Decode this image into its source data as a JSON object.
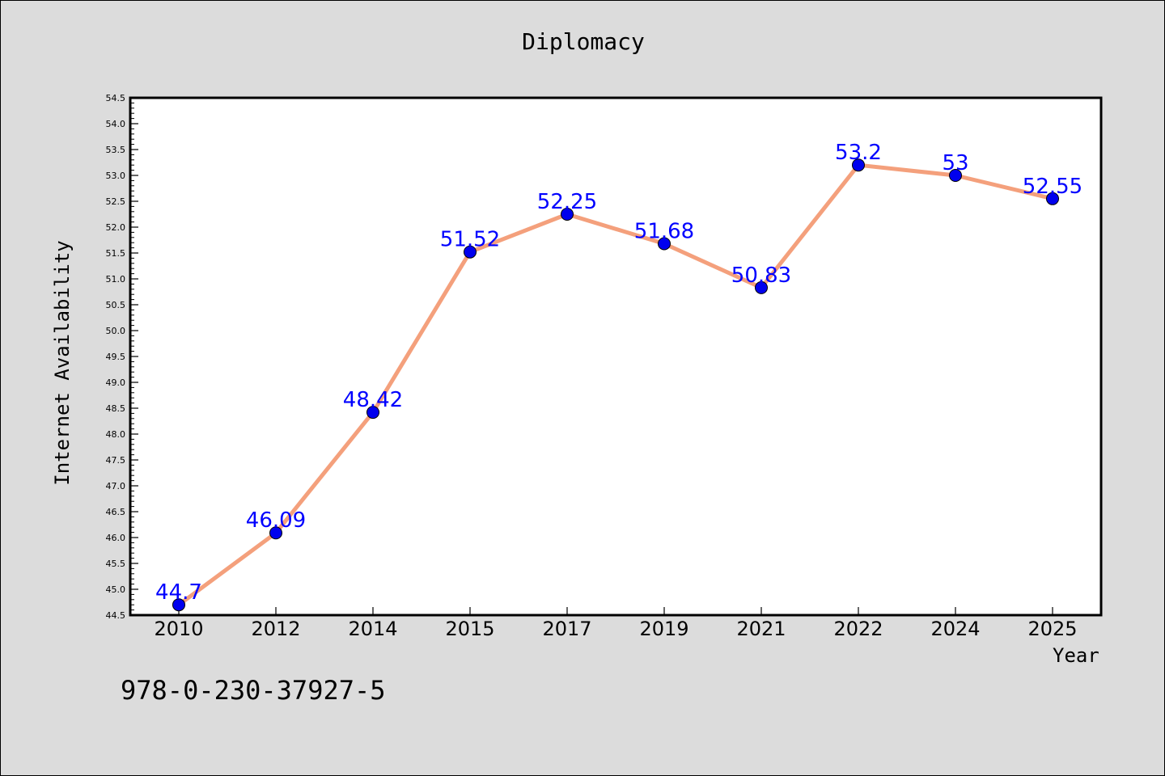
{
  "chart_data": {
    "type": "line",
    "title": "Diplomacy",
    "xlabel": "Year",
    "ylabel": "Internet Availability",
    "categories": [
      "2010",
      "2012",
      "2014",
      "2015",
      "2017",
      "2019",
      "2021",
      "2022",
      "2024",
      "2025"
    ],
    "series": [
      {
        "values": [
          44.7,
          46.09,
          48.42,
          51.52,
          52.25,
          51.68,
          50.83,
          53.2,
          53,
          52.55
        ],
        "labels": [
          "44.7",
          "46.09",
          "48.42",
          "51.52",
          "52.25",
          "51.68",
          "50.83",
          "53.2",
          "53",
          "52.55"
        ]
      }
    ],
    "ylim": [
      44.5,
      54.5
    ],
    "ytick_labels": [
      "44.5",
      "45.0",
      "45.5",
      "46.0",
      "46.5",
      "47.0",
      "47.5",
      "48.0",
      "48.5",
      "49.0",
      "49.5",
      "50.0",
      "50.5",
      "51.0",
      "51.5",
      "52.0",
      "52.5",
      "53.0",
      "53.5",
      "54.0",
      "54.5"
    ],
    "grid": false,
    "legend": "none",
    "colors": {
      "line": "#f4a07c",
      "marker": "#0000ee",
      "data_label": "#0000ff",
      "plot_background": "#ffffff",
      "figure_background": "#dcdcdc"
    }
  },
  "footer": {
    "text": "978-0-230-37927-5"
  }
}
